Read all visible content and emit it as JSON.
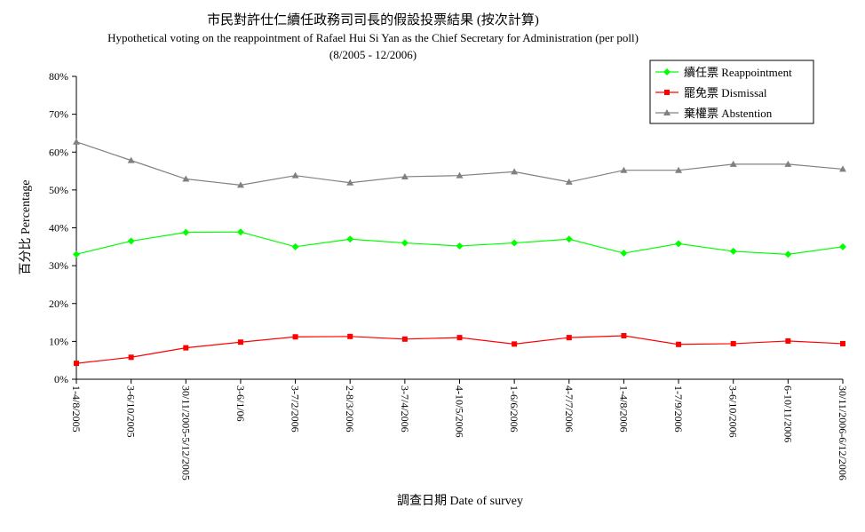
{
  "chart_data": {
    "type": "line",
    "title": "市民對許仕仁續任政務司司長的假設投票結果 (按次計算)",
    "subtitle": "Hypothetical voting on the reappointment of Rafael Hui Si Yan as the Chief Secretary for Administration (per poll)",
    "period": "(8/2005 - 12/2006)",
    "xlabel": "調查日期 Date of survey",
    "ylabel": "百分比 Percentage",
    "ylim": [
      0,
      80
    ],
    "yticks": [
      "0%",
      "10%",
      "20%",
      "30%",
      "40%",
      "50%",
      "60%",
      "70%",
      "80%"
    ],
    "grid": false,
    "legend_position": "top-right",
    "categories": [
      "1-4/8/2005",
      "3-6/10/2005",
      "30/11/2005-5/12/2005",
      "3-6/1/06",
      "3-7/2/2006",
      "2-8/3/2006",
      "3-7/4/2006",
      "4-10/5/2006",
      "1-6/6/2006",
      "4-7/7/2006",
      "1-4/8/2006",
      "1-7/9/2006",
      "3-6/10/2006",
      "6-10/11/2006",
      "30/11/2006-6/12/2006"
    ],
    "series": [
      {
        "name": "續任票 Reappointment",
        "color": "#00ff00",
        "marker": "diamond",
        "values": [
          33.0,
          36.5,
          38.8,
          38.9,
          35.0,
          37.0,
          36.0,
          35.2,
          36.0,
          37.0,
          33.3,
          35.8,
          33.8,
          33.0,
          35.0
        ]
      },
      {
        "name": "罷免票 Dismissal",
        "color": "#ff0000",
        "marker": "square",
        "values": [
          4.2,
          5.8,
          8.3,
          9.8,
          11.2,
          11.3,
          10.6,
          11.0,
          9.3,
          11.0,
          11.5,
          9.2,
          9.4,
          10.1,
          9.4
        ]
      },
      {
        "name": "棄權票 Abstention",
        "color": "#808080",
        "marker": "triangle",
        "values": [
          62.7,
          57.8,
          52.9,
          51.3,
          53.8,
          51.9,
          53.5,
          53.8,
          54.8,
          52.1,
          55.2,
          55.2,
          56.8,
          56.8,
          55.5
        ]
      }
    ]
  }
}
